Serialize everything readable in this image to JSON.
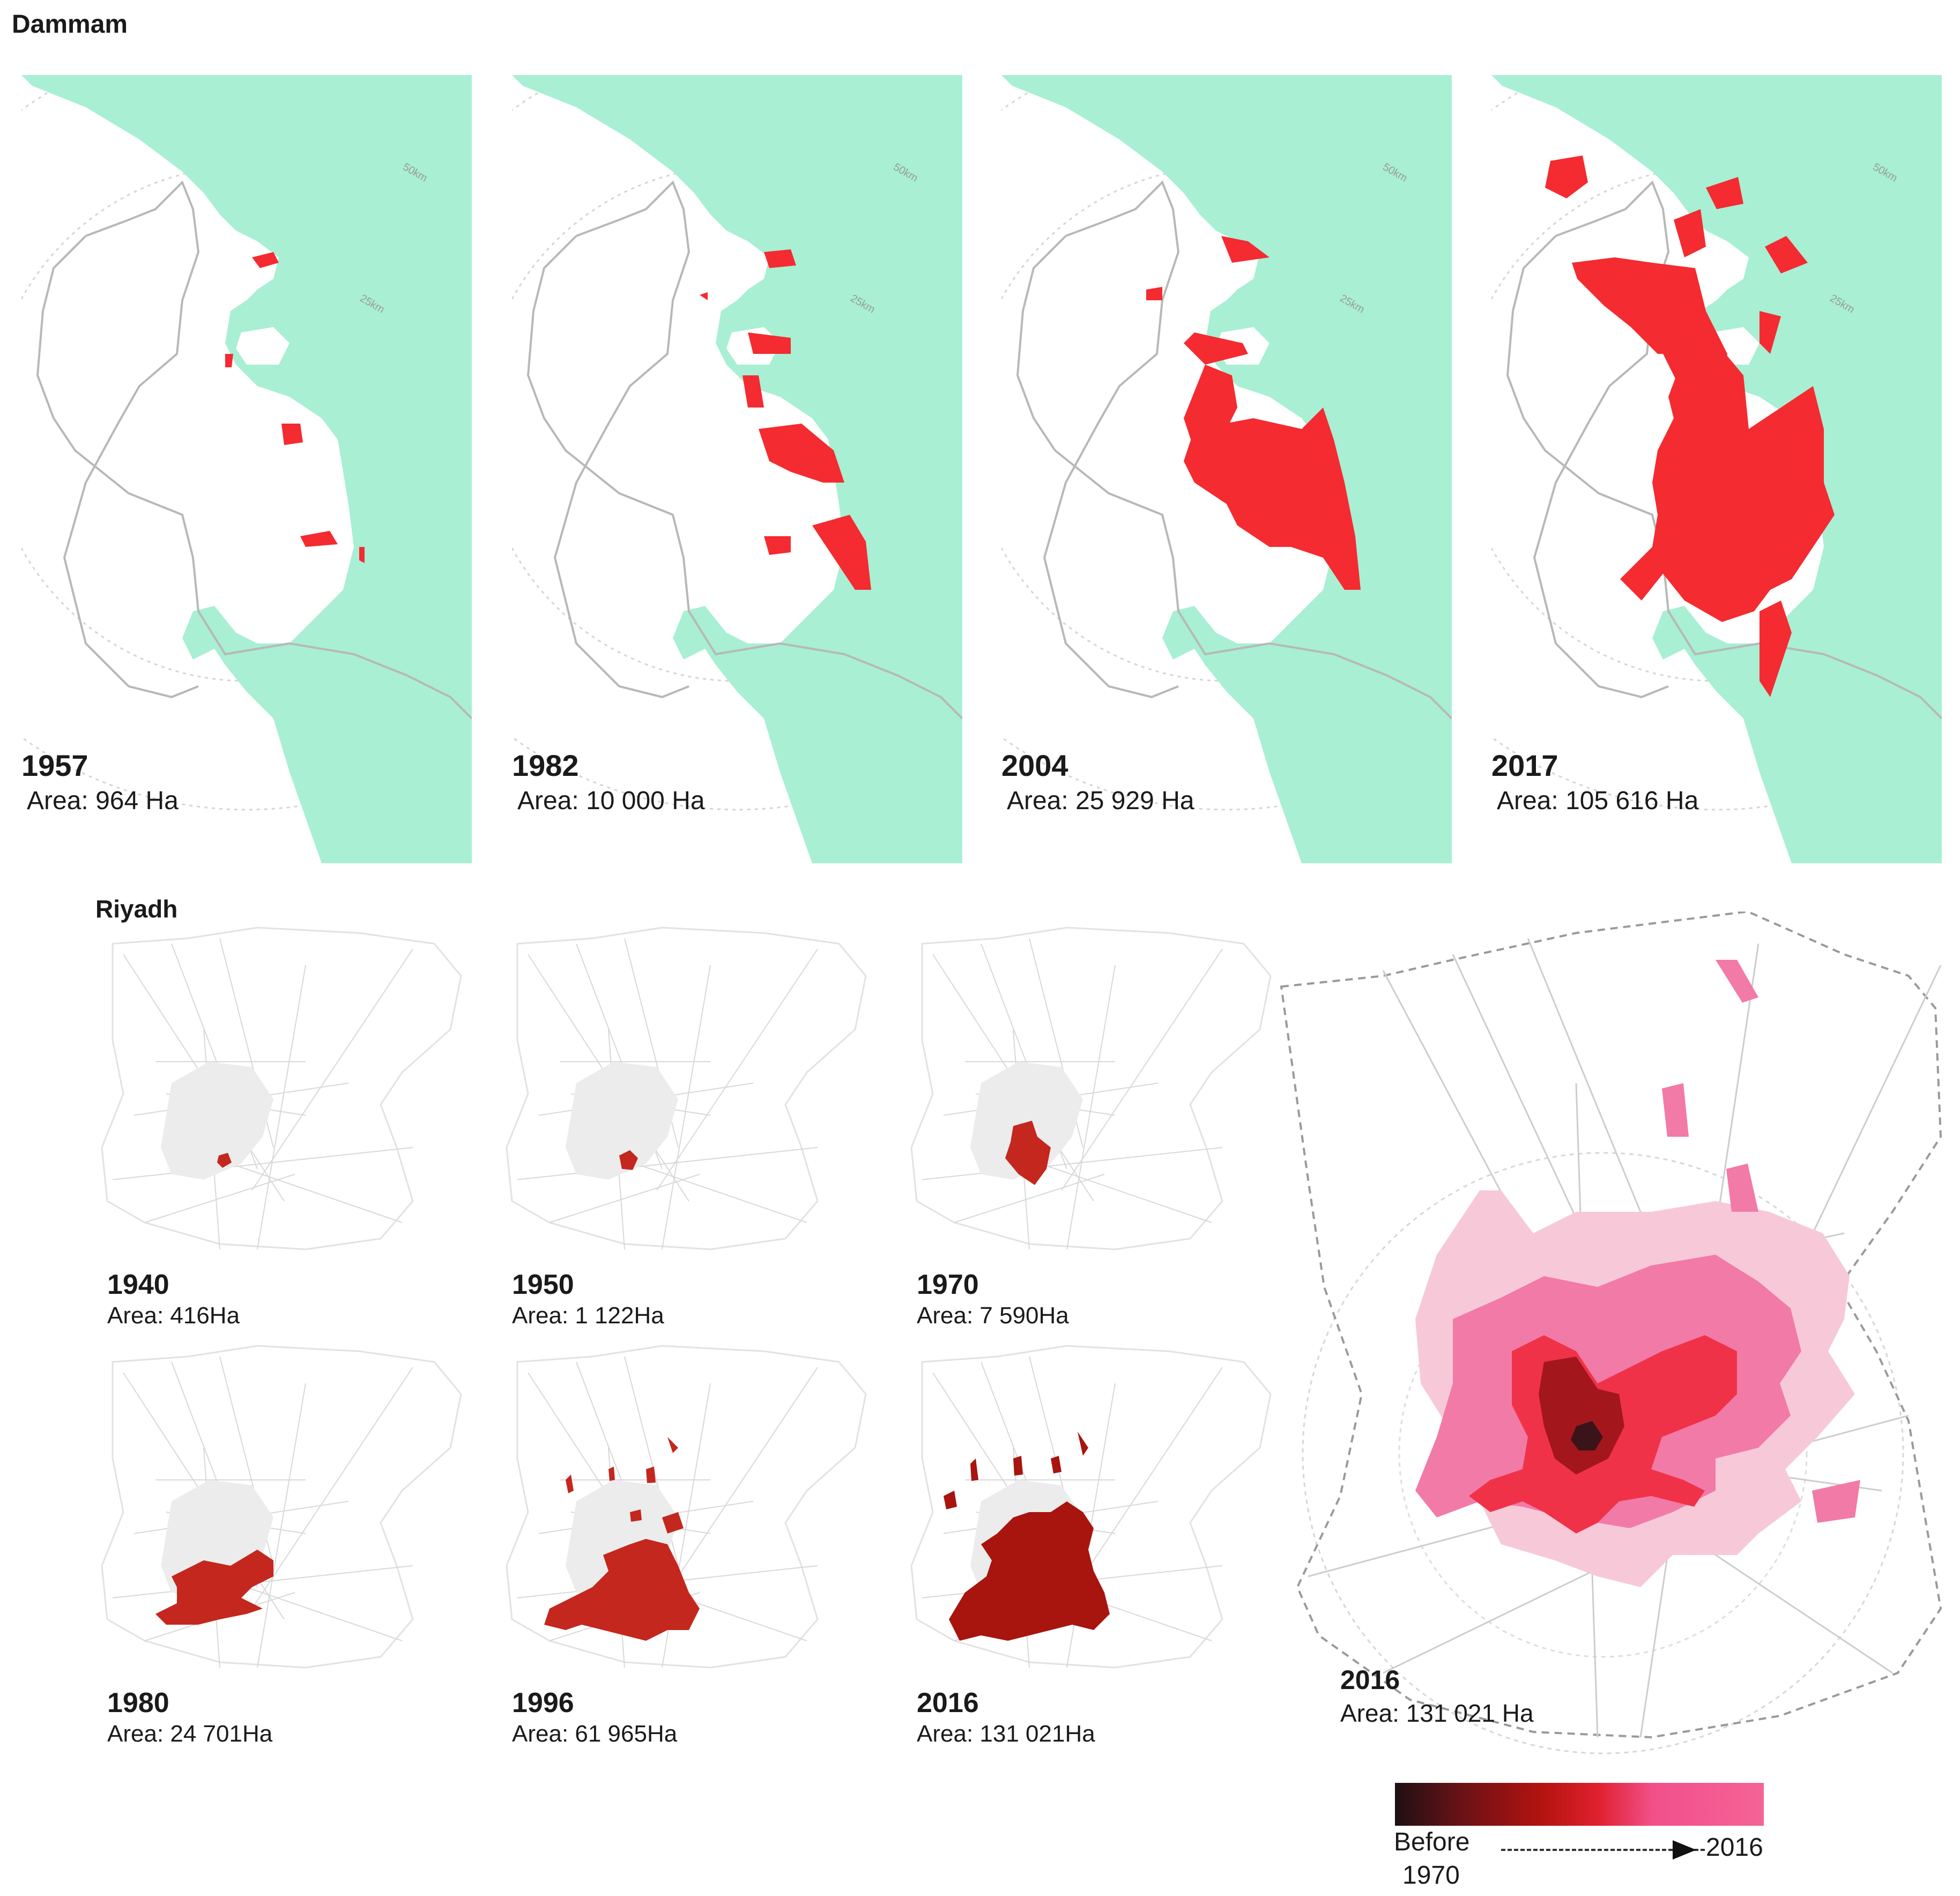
{
  "dammam": {
    "heading": "Dammam",
    "ring_outer": "50km",
    "ring_inner": "25km",
    "panels": [
      {
        "year": "1957",
        "area": "Area: 964 Ha",
        "level": 0.05
      },
      {
        "year": "1982",
        "area": "Area: 10 000 Ha",
        "level": 0.25
      },
      {
        "year": "2004",
        "area": "Area: 25 929 Ha",
        "level": 0.55
      },
      {
        "year": "2017",
        "area": "Area: 105 616 Ha",
        "level": 1.0
      }
    ]
  },
  "riyadh": {
    "heading": "Riyadh",
    "panels": [
      {
        "year": "1940",
        "area": "Area: 416Ha",
        "level": 0.03
      },
      {
        "year": "1950",
        "area": "Area: 1 122Ha",
        "level": 0.06
      },
      {
        "year": "1970",
        "area": "Area: 7 590Ha",
        "level": 0.2
      },
      {
        "year": "1980",
        "area": "Area: 24 701Ha",
        "level": 0.4
      },
      {
        "year": "1996",
        "area": "Area: 61 965Ha",
        "level": 0.7
      },
      {
        "year": "2016",
        "area": "Area: 131 021Ha",
        "level": 1.0
      }
    ],
    "combined": {
      "year": "2016",
      "area": "Area: 131 021 Ha"
    }
  },
  "legend": {
    "start_label_1": "Before",
    "start_label_2": "1970",
    "end_label": "2016"
  },
  "colors": {
    "sea": "#a8efd4",
    "dammam_urban": "#f42b30",
    "riyadh_urban": "#c4271e",
    "riyadh_2016": "#a8140e",
    "road_grey": "#cfcfcf",
    "boundary": "#b8b8b8"
  }
}
